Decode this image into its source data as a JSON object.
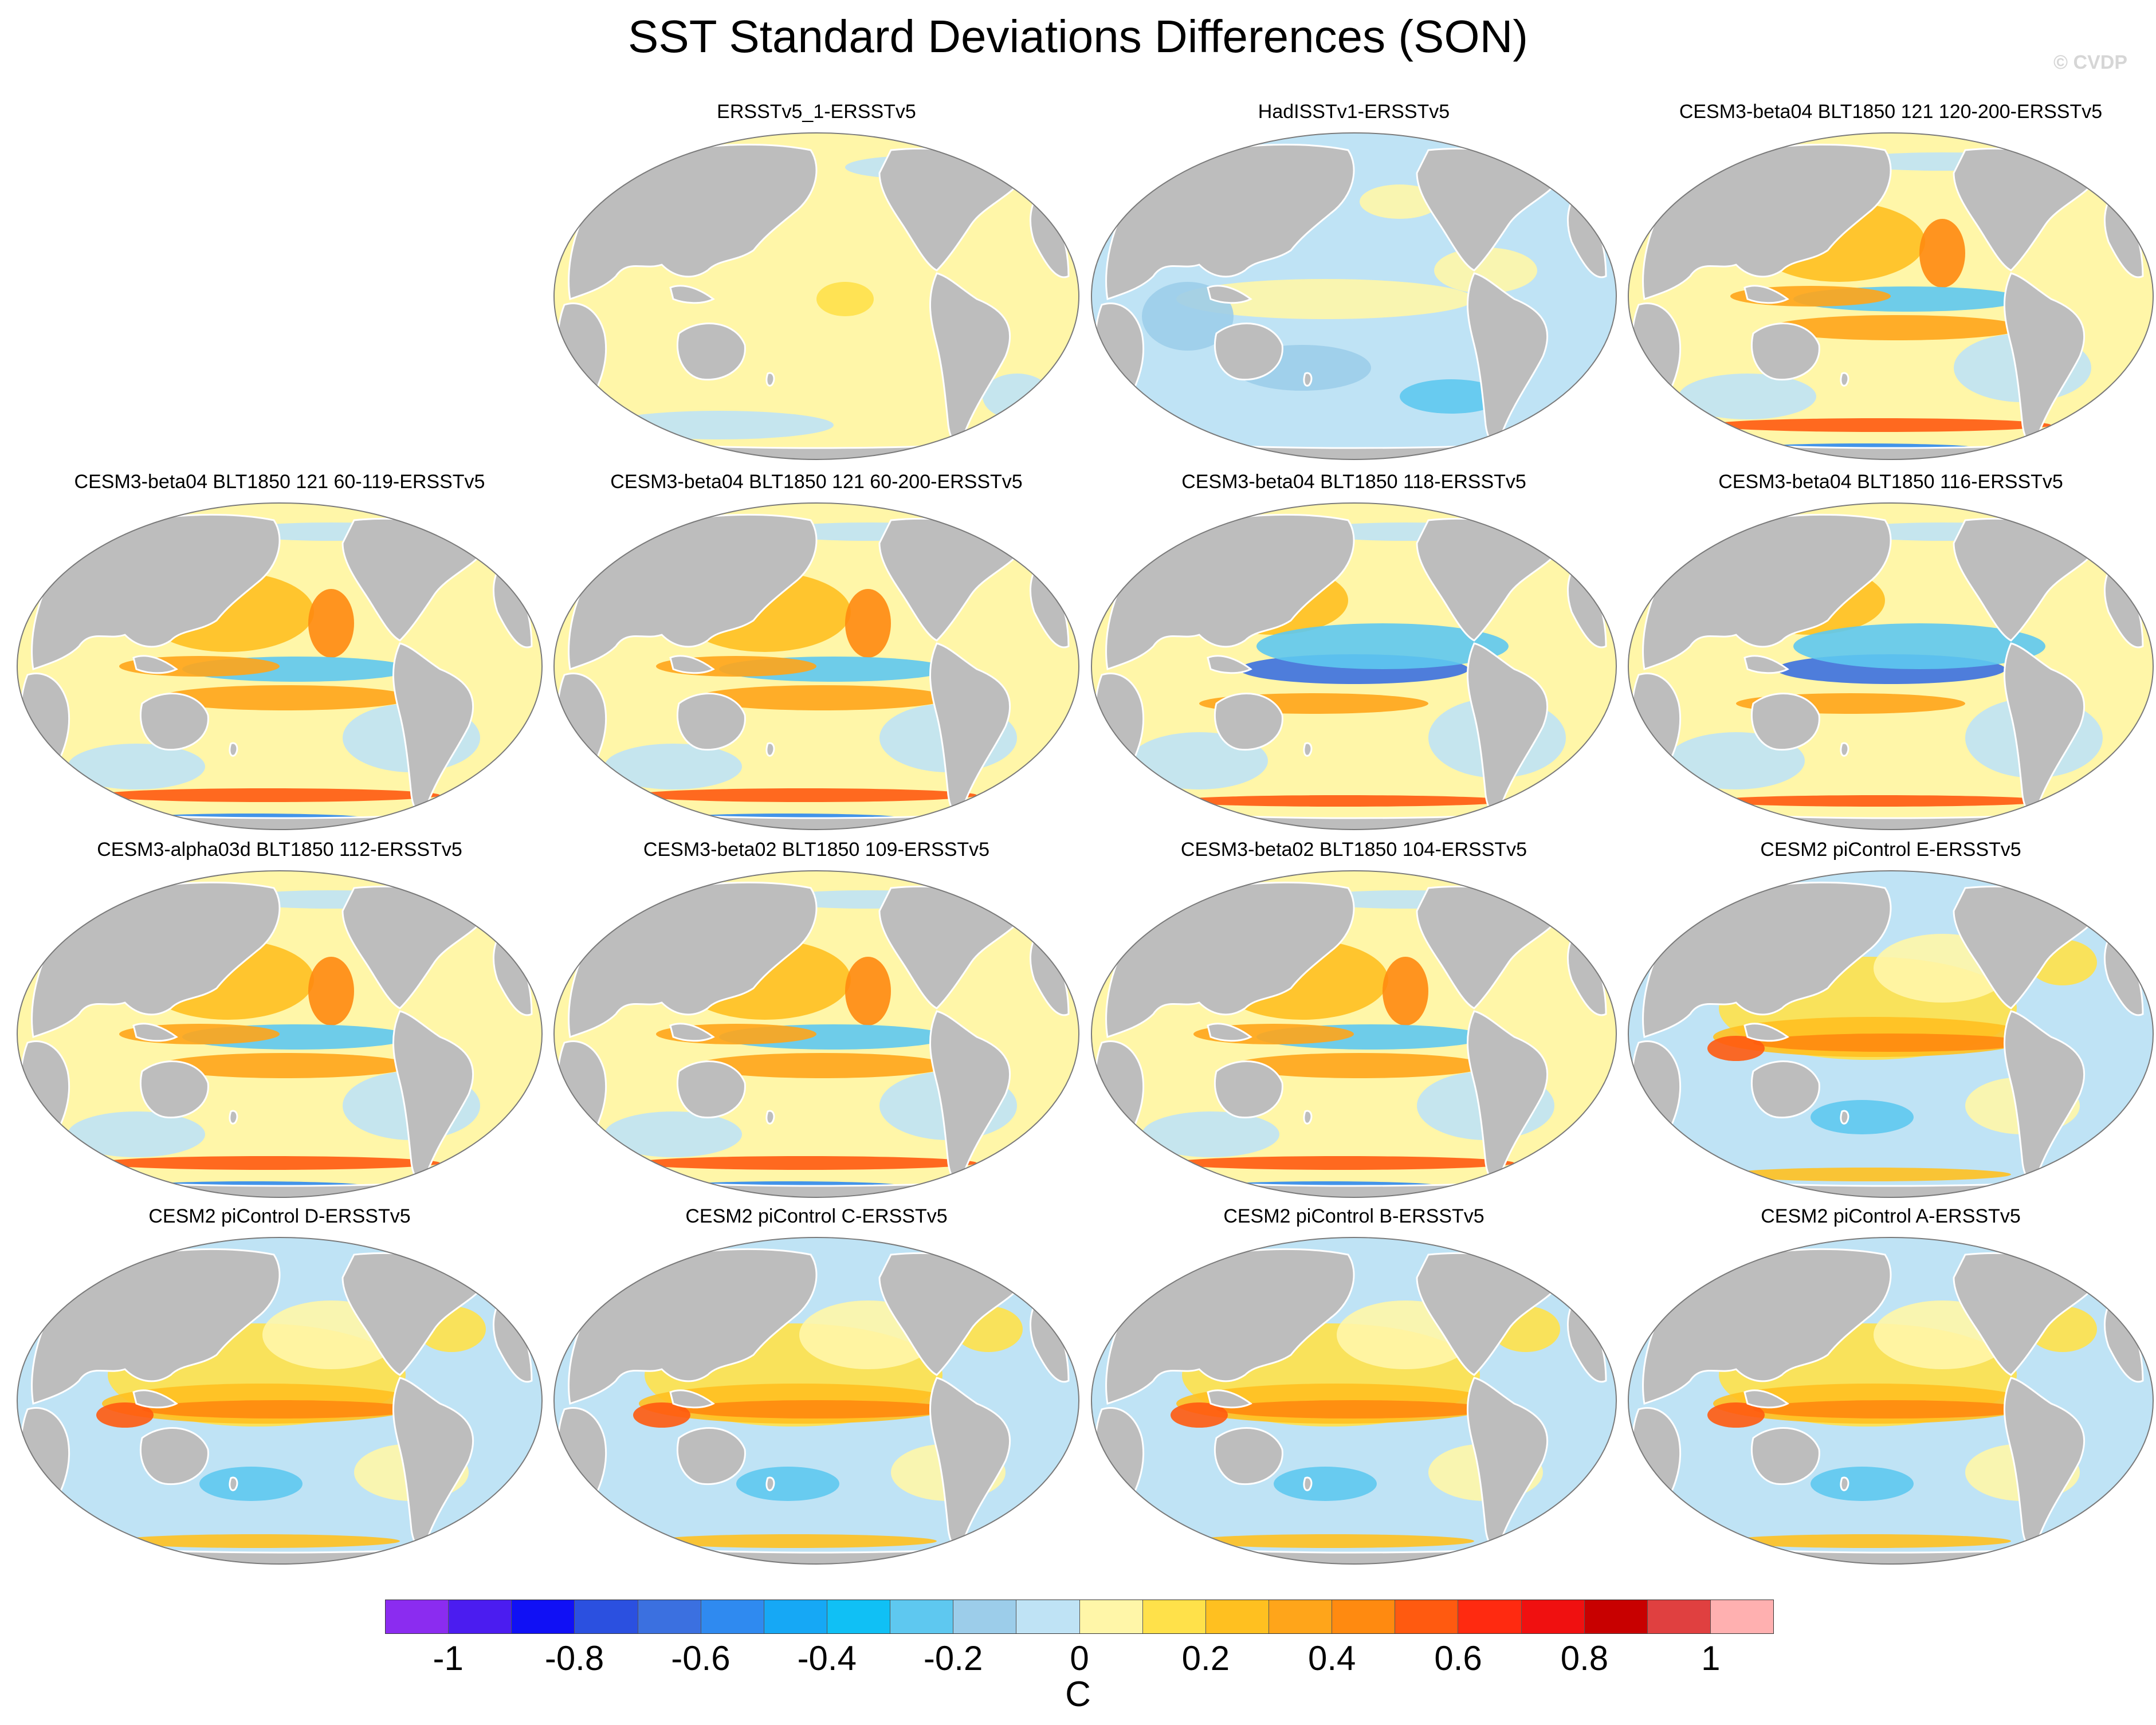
{
  "title": "SST Standard Deviations Differences (SON)",
  "credit": "© CVDP",
  "units": "C",
  "colors": {
    "land": "#bdbdbd",
    "ocean_base": "#fff6a8",
    "coast": "#ffffff",
    "outline": "#7a7a7a"
  },
  "colorbar": {
    "ticks": [
      "-1",
      "-0.8",
      "-0.6",
      "-0.4",
      "-0.2",
      "0",
      "0.2",
      "0.4",
      "0.6",
      "0.8",
      "1"
    ],
    "colors": [
      "#8b2cf0",
      "#4b1cf0",
      "#1010f5",
      "#2b50e0",
      "#3b70e0",
      "#2f8af0",
      "#16a8f5",
      "#10c0f5",
      "#5ec8f0",
      "#9ccdea",
      "#bfe3f5",
      "#fff6a8",
      "#ffe14a",
      "#ffc020",
      "#ffa51a",
      "#ff8a10",
      "#ff5a10",
      "#ff2a10",
      "#f01010",
      "#c80000",
      "#e04040",
      "#ffb0b0"
    ]
  },
  "panels": [
    {
      "title": "ERSSTv5_1-ERSSTv5",
      "pattern": "pale_warm"
    },
    {
      "title": "HadISSTv1-ERSSTv5",
      "pattern": "cool"
    },
    {
      "title": "CESM3-beta04 BLT1850 121 120-200-ERSSTv5",
      "pattern": "model"
    },
    {
      "title": "CESM3-beta04 BLT1850 121 60-119-ERSSTv5",
      "pattern": "model"
    },
    {
      "title": "CESM3-beta04 BLT1850 121 60-200-ERSSTv5",
      "pattern": "model"
    },
    {
      "title": "CESM3-beta04 BLT1850 118-ERSSTv5",
      "pattern": "model_cool"
    },
    {
      "title": "CESM3-beta04 BLT1850 116-ERSSTv5",
      "pattern": "model_cool"
    },
    {
      "title": "CESM3-alpha03d BLT1850 112-ERSSTv5",
      "pattern": "model"
    },
    {
      "title": "CESM3-beta02 BLT1850 109-ERSSTv5",
      "pattern": "model"
    },
    {
      "title": "CESM3-beta02 BLT1850 104-ERSSTv5",
      "pattern": "model"
    },
    {
      "title": "CESM2 piControl E-ERSSTv5",
      "pattern": "cesm2"
    },
    {
      "title": "CESM2 piControl D-ERSSTv5",
      "pattern": "cesm2"
    },
    {
      "title": "CESM2 piControl C-ERSSTv5",
      "pattern": "cesm2"
    },
    {
      "title": "CESM2 piControl B-ERSSTv5",
      "pattern": "cesm2"
    },
    {
      "title": "CESM2 piControl A-ERSSTv5",
      "pattern": "cesm2"
    }
  ]
}
